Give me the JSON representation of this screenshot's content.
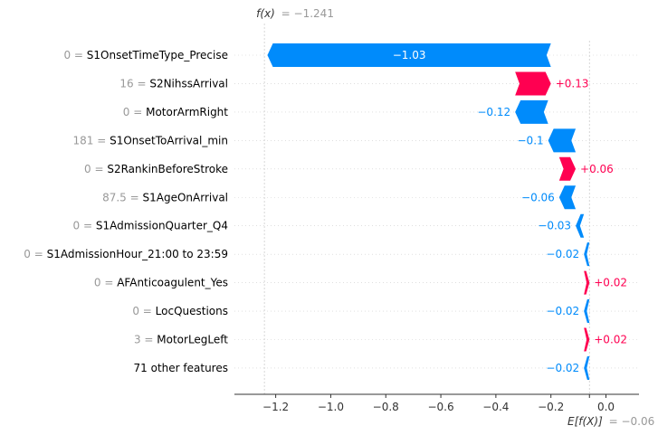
{
  "chart_data": {
    "type": "waterfall",
    "fx_label": "f(x)",
    "fx_value_text": "= −1.241",
    "fx": -1.241,
    "base_label": "E[f(X)]",
    "base_value_text": "= −0.06",
    "base_value": -0.06,
    "xlim": [
      -1.35,
      0.12
    ],
    "xticks": [
      -1.2,
      -1.0,
      -0.8,
      -0.6,
      -0.4,
      -0.2,
      0.0
    ],
    "xtick_labels": [
      "−1.2",
      "−1.0",
      "−0.8",
      "−0.6",
      "−0.4",
      "−0.2",
      "0.0"
    ],
    "features": [
      {
        "value": "0 =",
        "name": "S1OnsetTimeType_Precise",
        "contribution": -1.03,
        "label": "−1.03"
      },
      {
        "value": "16 =",
        "name": "S2NihssArrival",
        "contribution": 0.13,
        "label": "+0.13"
      },
      {
        "value": "0 =",
        "name": "MotorArmRight",
        "contribution": -0.12,
        "label": "−0.12"
      },
      {
        "value": "181 =",
        "name": "S1OnsetToArrival_min",
        "contribution": -0.1,
        "label": "−0.1"
      },
      {
        "value": "0 =",
        "name": "S2RankinBeforeStroke",
        "contribution": 0.06,
        "label": "+0.06"
      },
      {
        "value": "87.5 =",
        "name": "S1AgeOnArrival",
        "contribution": -0.06,
        "label": "−0.06"
      },
      {
        "value": "0 =",
        "name": "S1AdmissionQuarter_Q4",
        "contribution": -0.03,
        "label": "−0.03"
      },
      {
        "value": "0 =",
        "name": "S1AdmissionHour_21:00 to 23:59",
        "contribution": -0.02,
        "label": "−0.02"
      },
      {
        "value": "0 =",
        "name": "AFAnticoagulent_Yes",
        "contribution": 0.02,
        "label": "+0.02"
      },
      {
        "value": "0 =",
        "name": "LocQuestions",
        "contribution": -0.02,
        "label": "−0.02"
      },
      {
        "value": "3 =",
        "name": "MotorLegLeft",
        "contribution": 0.02,
        "label": "+0.02"
      },
      {
        "value": "",
        "name": "71 other features",
        "contribution": -0.02,
        "label": "−0.02"
      }
    ],
    "colors": {
      "positive": "#ff0051",
      "negative": "#008bfb",
      "axis": "#333333",
      "muted": "#999999",
      "gridline": "#cccccc"
    }
  }
}
